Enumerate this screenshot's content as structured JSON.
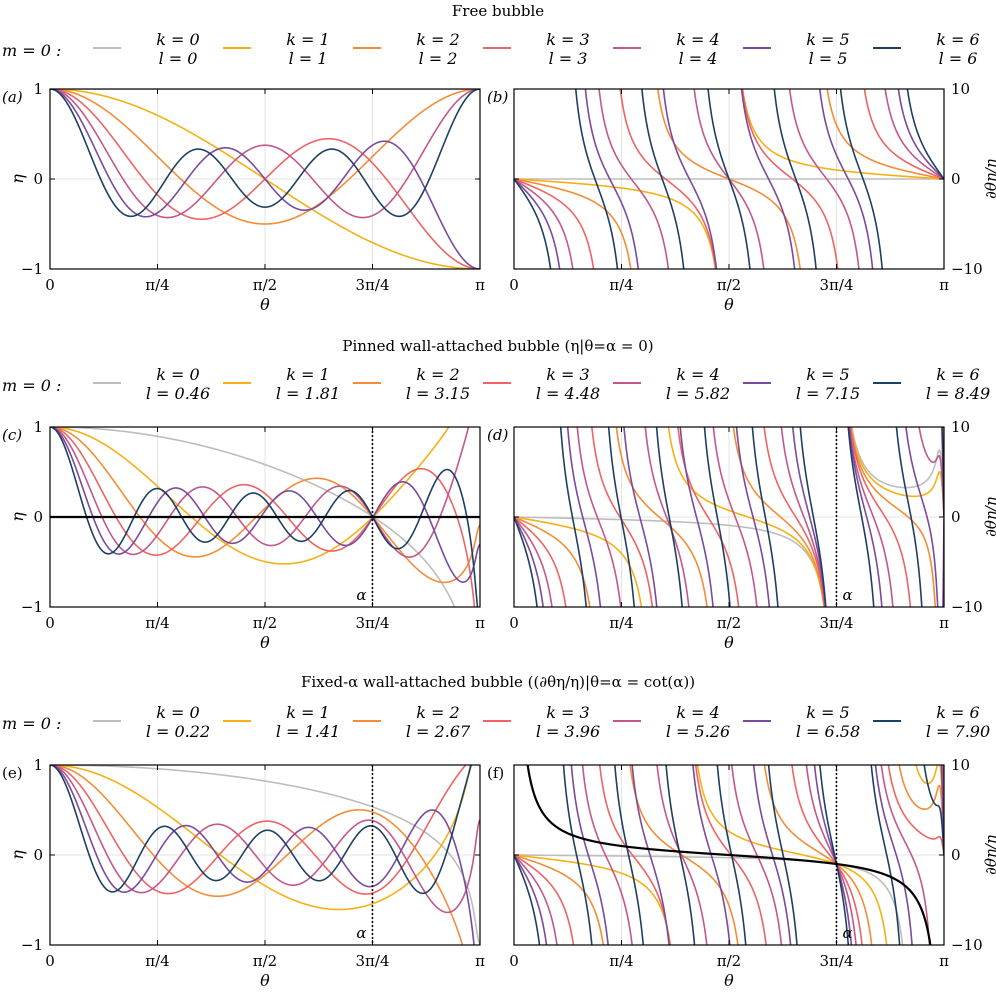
{
  "palette": [
    "#bdbdbd",
    "#f5b016",
    "#f48c36",
    "#ee6363",
    "#c3578b",
    "#7a4a9e",
    "#1e3f64"
  ],
  "sections": [
    {
      "title": "Free bubble",
      "legend_label": "m = 0 :",
      "legend": [
        {
          "k": "k = 0",
          "l": "l = 0"
        },
        {
          "k": "k = 1",
          "l": "l = 1"
        },
        {
          "k": "k = 2",
          "l": "l = 2"
        },
        {
          "k": "k = 3",
          "l": "l = 3"
        },
        {
          "k": "k = 4",
          "l": "l = 4"
        },
        {
          "k": "k = 5",
          "l": "l = 5"
        },
        {
          "k": "k = 6",
          "l": "l = 6"
        }
      ]
    },
    {
      "title": "Pinned wall-attached bubble (η|θ=α = 0)",
      "legend_label": "m = 0 :",
      "legend": [
        {
          "k": "k = 0",
          "l": "l = 0.46"
        },
        {
          "k": "k = 1",
          "l": "l = 1.81"
        },
        {
          "k": "k = 2",
          "l": "l = 3.15"
        },
        {
          "k": "k = 3",
          "l": "l = 4.48"
        },
        {
          "k": "k = 4",
          "l": "l = 5.82"
        },
        {
          "k": "k = 5",
          "l": "l = 7.15"
        },
        {
          "k": "k = 6",
          "l": "l = 8.49"
        }
      ]
    },
    {
      "title": "Fixed-α wall-attached bubble ((∂θη/η)|θ=α = cot(α))",
      "legend_label": "m = 0 :",
      "legend": [
        {
          "k": "k = 0",
          "l": "l = 0.22"
        },
        {
          "k": "k = 1",
          "l": "l = 1.41"
        },
        {
          "k": "k = 2",
          "l": "l = 2.67"
        },
        {
          "k": "k = 3",
          "l": "l = 3.96"
        },
        {
          "k": "k = 4",
          "l": "l = 5.26"
        },
        {
          "k": "k = 5",
          "l": "l = 6.58"
        },
        {
          "k": "k = 6",
          "l": "l = 7.90"
        }
      ]
    }
  ],
  "chart_data": [
    {
      "type": "line",
      "panel": "(a)",
      "section": 0,
      "quantity": "eta",
      "ylabel": "η",
      "xlabel": "θ",
      "xlim": [
        0,
        3.14159
      ],
      "ylim": [
        -1,
        1
      ],
      "x_ticks": [
        "0",
        "π/4",
        "π/2",
        "3π/4",
        "π"
      ],
      "y_ticks": [
        "−1",
        "0",
        "1"
      ],
      "l_values": [
        0,
        1,
        2,
        3,
        4,
        5,
        6
      ],
      "series_names": [
        "k = 0, l = 0",
        "k = 1, l = 1",
        "k = 2, l = 2",
        "k = 3, l = 3",
        "k = 4, l = 4",
        "k = 5, l = 5",
        "k = 6, l = 6"
      ]
    },
    {
      "type": "line",
      "panel": "(b)",
      "section": 0,
      "quantity": "dlog",
      "ylabel": "∂θη/η",
      "xlabel": "θ",
      "xlim": [
        0,
        3.14159
      ],
      "ylim": [
        -10,
        10
      ],
      "x_ticks": [
        "0",
        "π/4",
        "π/2",
        "3π/4",
        "π"
      ],
      "y_ticks": [
        "−10",
        "0",
        "10"
      ],
      "l_values": [
        0,
        1,
        2,
        3,
        4,
        5,
        6
      ],
      "series_names": [
        "k = 0, l = 0",
        "k = 1, l = 1",
        "k = 2, l = 2",
        "k = 3, l = 3",
        "k = 4, l = 4",
        "k = 5, l = 5",
        "k = 6, l = 6"
      ]
    },
    {
      "type": "line",
      "panel": "(c)",
      "section": 1,
      "quantity": "eta",
      "ylabel": "η",
      "xlabel": "θ",
      "xlim": [
        0,
        3.14159
      ],
      "ylim": [
        -1,
        1
      ],
      "x_ticks": [
        "0",
        "π/4",
        "π/2",
        "3π/4",
        "π"
      ],
      "y_ticks": [
        "−1",
        "0",
        "1"
      ],
      "l_values": [
        0.46,
        1.81,
        3.15,
        4.48,
        5.82,
        7.15,
        8.49
      ],
      "alpha_label": "α",
      "alpha": 2.356,
      "zero_line": true,
      "series_names": [
        "k = 0, l = 0.46",
        "k = 1, l = 1.81",
        "k = 2, l = 3.15",
        "k = 3, l = 4.48",
        "k = 4, l = 5.82",
        "k = 5, l = 7.15",
        "k = 6, l = 8.49"
      ]
    },
    {
      "type": "line",
      "panel": "(d)",
      "section": 1,
      "quantity": "dlog",
      "ylabel": "∂θη/η",
      "xlabel": "θ",
      "xlim": [
        0,
        3.14159
      ],
      "ylim": [
        -10,
        10
      ],
      "x_ticks": [
        "0",
        "π/4",
        "π/2",
        "3π/4",
        "π"
      ],
      "y_ticks": [
        "−10",
        "0",
        "10"
      ],
      "l_values": [
        0.46,
        1.81,
        3.15,
        4.48,
        5.82,
        7.15,
        8.49
      ],
      "alpha_label": "α",
      "alpha": 2.356,
      "series_names": [
        "k = 0, l = 0.46",
        "k = 1, l = 1.81",
        "k = 2, l = 3.15",
        "k = 3, l = 4.48",
        "k = 4, l = 5.82",
        "k = 5, l = 7.15",
        "k = 6, l = 8.49"
      ]
    },
    {
      "type": "line",
      "panel": "(e)",
      "section": 2,
      "quantity": "eta",
      "ylabel": "η",
      "xlabel": "θ",
      "xlim": [
        0,
        3.14159
      ],
      "ylim": [
        -1,
        1
      ],
      "x_ticks": [
        "0",
        "π/4",
        "π/2",
        "3π/4",
        "π"
      ],
      "y_ticks": [
        "−1",
        "0",
        "1"
      ],
      "l_values": [
        0.22,
        1.41,
        2.67,
        3.96,
        5.26,
        6.58,
        7.9
      ],
      "alpha_label": "α",
      "alpha": 2.356,
      "series_names": [
        "k = 0, l = 0.22",
        "k = 1, l = 1.41",
        "k = 2, l = 2.67",
        "k = 3, l = 3.96",
        "k = 4, l = 5.26",
        "k = 5, l = 6.58",
        "k = 6, l = 7.90"
      ]
    },
    {
      "type": "line",
      "panel": "(f)",
      "section": 2,
      "quantity": "dlog",
      "ylabel": "∂θη/η",
      "xlabel": "θ",
      "xlim": [
        0,
        3.14159
      ],
      "ylim": [
        -10,
        10
      ],
      "x_ticks": [
        "0",
        "π/4",
        "π/2",
        "3π/4",
        "π"
      ],
      "y_ticks": [
        "−10",
        "0",
        "10"
      ],
      "l_values": [
        0.22,
        1.41,
        2.67,
        3.96,
        5.26,
        6.58,
        7.9
      ],
      "alpha_label": "α",
      "alpha": 2.356,
      "cot_curve": true,
      "series_names": [
        "k = 0, l = 0.22",
        "k = 1, l = 1.41",
        "k = 2, l = 2.67",
        "k = 3, l = 3.96",
        "k = 4, l = 5.26",
        "k = 5, l = 6.58",
        "k = 6, l = 7.90"
      ]
    }
  ]
}
